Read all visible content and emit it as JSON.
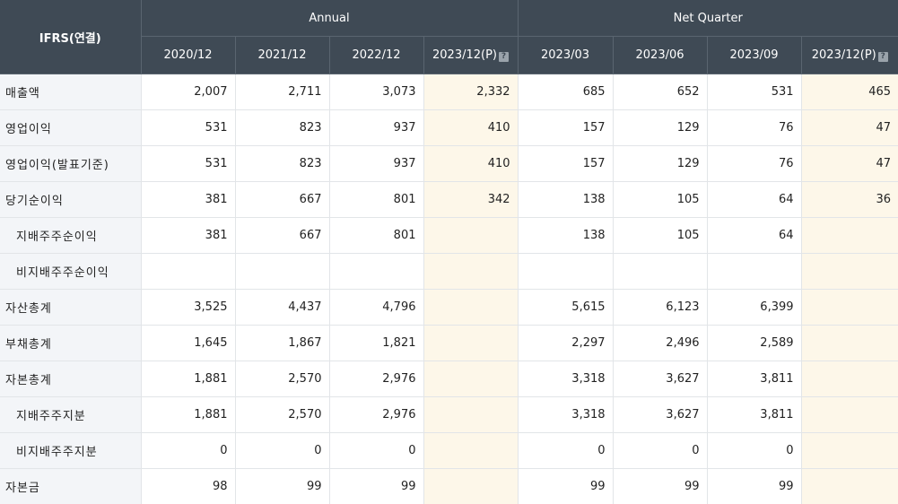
{
  "corner_label": "IFRS(연결)",
  "groups": {
    "annual": "Annual",
    "quarter": "Net Quarter"
  },
  "periods": [
    "2020/12",
    "2021/12",
    "2022/12",
    "2023/12(P)",
    "2023/03",
    "2023/06",
    "2023/09",
    "2023/12(P)"
  ],
  "help_icon": "?",
  "rows": [
    {
      "label": "매출액",
      "values": [
        "2,007",
        "2,711",
        "3,073",
        "2,332",
        "685",
        "652",
        "531",
        "465"
      ]
    },
    {
      "label": "영업이익",
      "values": [
        "531",
        "823",
        "937",
        "410",
        "157",
        "129",
        "76",
        "47"
      ]
    },
    {
      "label": "영업이익(발표기준)",
      "values": [
        "531",
        "823",
        "937",
        "410",
        "157",
        "129",
        "76",
        "47"
      ]
    },
    {
      "label": "당기순이익",
      "values": [
        "381",
        "667",
        "801",
        "342",
        "138",
        "105",
        "64",
        "36"
      ]
    },
    {
      "label": "지배주주순이익",
      "values": [
        "381",
        "667",
        "801",
        "",
        "138",
        "105",
        "64",
        ""
      ]
    },
    {
      "label": "비지배주주순이익",
      "values": [
        "",
        "",
        "",
        "",
        "",
        "",
        "",
        ""
      ]
    },
    {
      "label": "자산총계",
      "values": [
        "3,525",
        "4,437",
        "4,796",
        "",
        "5,615",
        "6,123",
        "6,399",
        ""
      ]
    },
    {
      "label": "부채총계",
      "values": [
        "1,645",
        "1,867",
        "1,821",
        "",
        "2,297",
        "2,496",
        "2,589",
        ""
      ]
    },
    {
      "label": "자본총계",
      "values": [
        "1,881",
        "2,570",
        "2,976",
        "",
        "3,318",
        "3,627",
        "3,811",
        ""
      ]
    },
    {
      "label": "지배주주지분",
      "values": [
        "1,881",
        "2,570",
        "2,976",
        "",
        "3,318",
        "3,627",
        "3,811",
        ""
      ]
    },
    {
      "label": "비지배주주지분",
      "values": [
        "0",
        "0",
        "0",
        "",
        "0",
        "0",
        "0",
        ""
      ]
    },
    {
      "label": "자본금",
      "values": [
        "98",
        "99",
        "99",
        "",
        "99",
        "99",
        "99",
        ""
      ]
    }
  ]
}
